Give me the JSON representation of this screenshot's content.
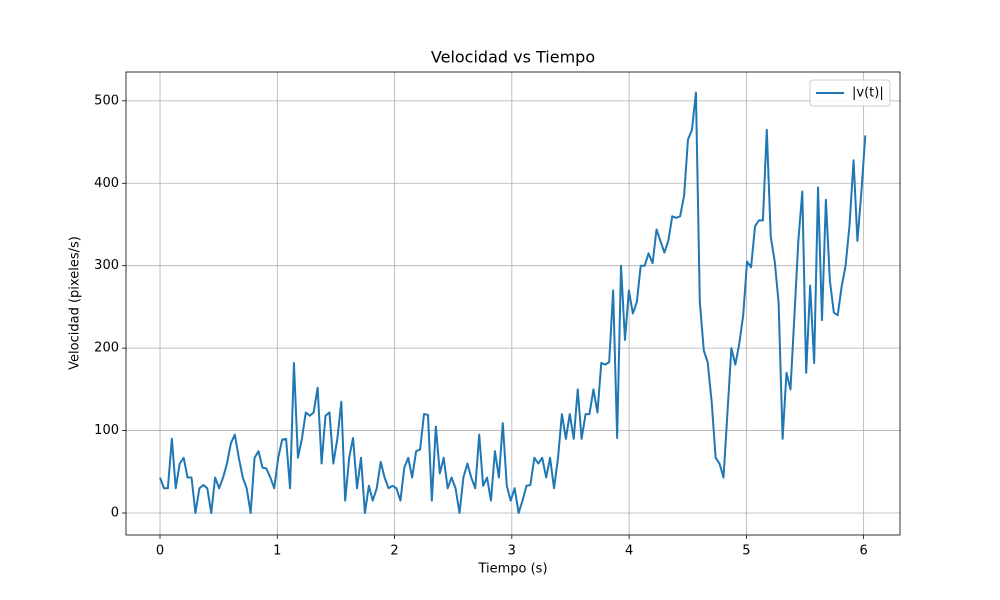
{
  "chart_data": {
    "type": "line",
    "title": "Velocidad vs Tiempo",
    "xlabel": "Tiempo (s)",
    "ylabel": "Velocidad (pixeles/s)",
    "xlim": [
      -0.29,
      6.31
    ],
    "ylim": [
      -26.7,
      535
    ],
    "xticks": [
      0,
      1,
      2,
      3,
      4,
      5,
      6
    ],
    "yticks": [
      0,
      100,
      200,
      300,
      400,
      500
    ],
    "grid": true,
    "legend": "upper right",
    "x": [
      0,
      0.034,
      0.067,
      0.101,
      0.134,
      0.168,
      0.202,
      0.235,
      0.269,
      0.302,
      0.336,
      0.37,
      0.403,
      0.437,
      0.47,
      0.504,
      0.538,
      0.571,
      0.605,
      0.638,
      0.672,
      0.706,
      0.739,
      0.773,
      0.806,
      0.84,
      0.874,
      0.907,
      0.941,
      0.974,
      1.008,
      1.042,
      1.075,
      1.109,
      1.142,
      1.176,
      1.21,
      1.243,
      1.277,
      1.31,
      1.344,
      1.378,
      1.411,
      1.445,
      1.478,
      1.512,
      1.546,
      1.579,
      1.613,
      1.646,
      1.68,
      1.714,
      1.747,
      1.781,
      1.814,
      1.848,
      1.882,
      1.915,
      1.949,
      1.982,
      2.016,
      2.05,
      2.083,
      2.117,
      2.15,
      2.184,
      2.218,
      2.251,
      2.285,
      2.318,
      2.352,
      2.386,
      2.419,
      2.453,
      2.486,
      2.52,
      2.554,
      2.587,
      2.621,
      2.654,
      2.688,
      2.722,
      2.755,
      2.789,
      2.822,
      2.856,
      2.89,
      2.923,
      2.957,
      2.99,
      3.024,
      3.058,
      3.091,
      3.125,
      3.158,
      3.192,
      3.226,
      3.259,
      3.293,
      3.326,
      3.36,
      3.394,
      3.427,
      3.461,
      3.494,
      3.528,
      3.562,
      3.595,
      3.629,
      3.662,
      3.696,
      3.73,
      3.763,
      3.797,
      3.83,
      3.864,
      3.898,
      3.931,
      3.965,
      3.998,
      4.032,
      4.066,
      4.099,
      4.133,
      4.166,
      4.2,
      4.234,
      4.267,
      4.301,
      4.334,
      4.368,
      4.402,
      4.435,
      4.469,
      4.502,
      4.536,
      4.57,
      4.603,
      4.637,
      4.67,
      4.704,
      4.738,
      4.771,
      4.805,
      4.838,
      4.872,
      4.906,
      4.939,
      4.973,
      5.006,
      5.04,
      5.074,
      5.107,
      5.141,
      5.174,
      5.208,
      5.242,
      5.275,
      5.309,
      5.342,
      5.376,
      5.41,
      5.443,
      5.477,
      5.51,
      5.544,
      5.578,
      5.611,
      5.645,
      5.678,
      5.712,
      5.746,
      5.779,
      5.813,
      5.846,
      5.88,
      5.914,
      5.947,
      5.981,
      6.014
    ],
    "series": [
      {
        "name": "|v(t)|",
        "color": "#1f77b4",
        "values": [
          43,
          30,
          30,
          90,
          30,
          60,
          67,
          43,
          43,
          0,
          30,
          34,
          30,
          0,
          43,
          30,
          43,
          60,
          85,
          95,
          67,
          43,
          30,
          0,
          67,
          75,
          55,
          54,
          43,
          30,
          67,
          89,
          90,
          30,
          182,
          67,
          90,
          122,
          118,
          122,
          152,
          60,
          118,
          122,
          60,
          90,
          135,
          15,
          67,
          91,
          30,
          67,
          0,
          33,
          15,
          30,
          62,
          43,
          30,
          33,
          30,
          15,
          55,
          67,
          43,
          75,
          77,
          120,
          119,
          15,
          105,
          48,
          67,
          30,
          43,
          30,
          0,
          43,
          60,
          43,
          30,
          95,
          33,
          43,
          15,
          75,
          43,
          109,
          33,
          15,
          30,
          0,
          15,
          33,
          34,
          67,
          60,
          67,
          43,
          67,
          30,
          67,
          120,
          90,
          120,
          90,
          150,
          90,
          120,
          120,
          150,
          122,
          182,
          180,
          183,
          270,
          91,
          300,
          210,
          270,
          242,
          256,
          300,
          300,
          315,
          303,
          344,
          330,
          316,
          330,
          360,
          358,
          360,
          385,
          453,
          465,
          510,
          256,
          197,
          183,
          135,
          67,
          60,
          43,
          120,
          200,
          180,
          205,
          240,
          305,
          298,
          348,
          355,
          355,
          465,
          335,
          305,
          255,
          90,
          170,
          150,
          240,
          330,
          390,
          170,
          276,
          182,
          395,
          234,
          380,
          282,
          243,
          240,
          275,
          300,
          350,
          428,
          330,
          390,
          458
        ]
      }
    ]
  }
}
